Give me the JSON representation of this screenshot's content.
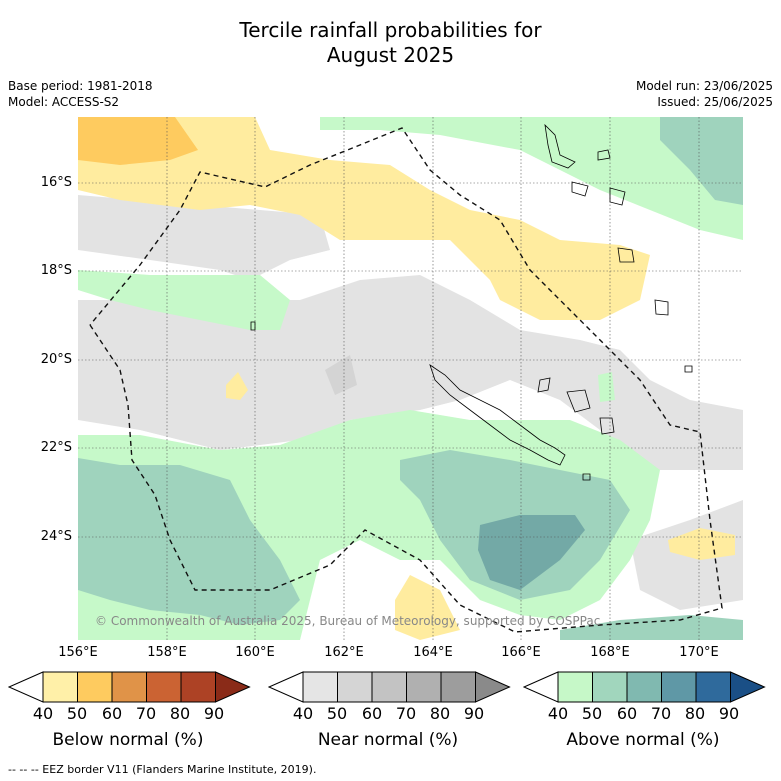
{
  "title_line1": "Tercile rainfall probabilities for",
  "title_line2": "August 2025",
  "meta_left": [
    "Base period: 1981-2018",
    "Model: ACCESS-S2"
  ],
  "meta_right": [
    "Model run: 23/06/2025",
    "Issued: 25/06/2025"
  ],
  "credit": "© Commonwealth of Australia 2025, Bureau of Meteorology, supported by COSPPac",
  "footer": "-- -- -- EEZ border V11 (Flanders Marine Institute, 2019).",
  "lat_labels": [
    "16°S",
    "18°S",
    "20°S",
    "22°S",
    "24°S"
  ],
  "lon_labels": [
    "156°E",
    "158°E",
    "160°E",
    "162°E",
    "164°E",
    "166°E",
    "168°E",
    "170°E"
  ],
  "colorbars": [
    {
      "title": "Below normal (%)",
      "ticks": [
        "40",
        "50",
        "60",
        "70",
        "80",
        "90"
      ],
      "colors": [
        "#fff0a8",
        "#fecb5f",
        "#e09348",
        "#cb6333",
        "#ad4225",
        "#8a2b18"
      ]
    },
    {
      "title": "Near normal (%)",
      "ticks": [
        "40",
        "50",
        "60",
        "70",
        "80",
        "90"
      ],
      "colors": [
        "#e5e5e5",
        "#d5d5d5",
        "#c3c3c3",
        "#b0b0b0",
        "#9d9d9d",
        "#8a8a8a"
      ]
    },
    {
      "title": "Above normal (%)",
      "ticks": [
        "40",
        "50",
        "60",
        "70",
        "80",
        "90"
      ],
      "colors": [
        "#c6f8c8",
        "#a1d6bd",
        "#80b9b0",
        "#5f98a6",
        "#2f6a9c",
        "#1a4f86"
      ]
    }
  ],
  "colors": {
    "below_40": "#ffec9f",
    "below_50": "#fecb5f",
    "near_40": "#e3e3e3",
    "near_50": "#d6d6d6",
    "above_40": "#c6f9c9",
    "above_50": "#9fd3bd",
    "above_60": "#73a9a6"
  }
}
